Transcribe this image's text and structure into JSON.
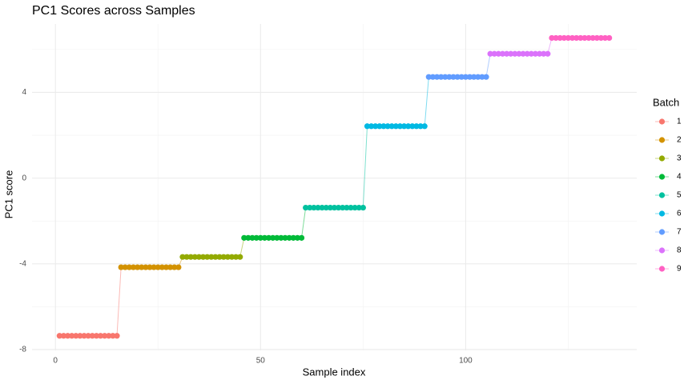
{
  "chart_data": {
    "type": "line",
    "title": "PC1 Scores across Samples",
    "x_label": "Sample index",
    "y_label": "PC1 score",
    "legend_title": "Batch",
    "xlim": [
      -5.7,
      141.7
    ],
    "ylim": [
      -8.04,
      7.19
    ],
    "xticks": [
      0,
      50,
      100
    ],
    "yticks": [
      -8,
      -4,
      0,
      4
    ],
    "x_minor_ticks": [
      25,
      75,
      125
    ],
    "y_minor_ticks": [
      -6,
      -2,
      2,
      6
    ],
    "grid": true,
    "legend_position": "right",
    "series": [
      {
        "name": "1",
        "color": "#F8766D",
        "x": [
          1,
          2,
          3,
          4,
          5,
          6,
          7,
          8,
          9,
          10,
          11,
          12,
          13,
          14,
          15
        ],
        "values": [
          -7.36,
          -7.36,
          -7.36,
          -7.36,
          -7.36,
          -7.36,
          -7.36,
          -7.36,
          -7.36,
          -7.36,
          -7.36,
          -7.36,
          -7.36,
          -7.36,
          -7.36
        ]
      },
      {
        "name": "2",
        "color": "#D39200",
        "x": [
          16,
          17,
          18,
          19,
          20,
          21,
          22,
          23,
          24,
          25,
          26,
          27,
          28,
          29,
          30
        ],
        "values": [
          -4.16,
          -4.16,
          -4.16,
          -4.16,
          -4.16,
          -4.16,
          -4.16,
          -4.16,
          -4.16,
          -4.16,
          -4.16,
          -4.16,
          -4.16,
          -4.16,
          -4.16
        ]
      },
      {
        "name": "3",
        "color": "#93AA00",
        "x": [
          31,
          32,
          33,
          34,
          35,
          36,
          37,
          38,
          39,
          40,
          41,
          42,
          43,
          44,
          45
        ],
        "values": [
          -3.68,
          -3.68,
          -3.68,
          -3.68,
          -3.68,
          -3.68,
          -3.68,
          -3.68,
          -3.68,
          -3.68,
          -3.68,
          -3.68,
          -3.68,
          -3.68,
          -3.68
        ]
      },
      {
        "name": "4",
        "color": "#00BA38",
        "x": [
          46,
          47,
          48,
          49,
          50,
          51,
          52,
          53,
          54,
          55,
          56,
          57,
          58,
          59,
          60
        ],
        "values": [
          -2.79,
          -2.79,
          -2.79,
          -2.79,
          -2.79,
          -2.79,
          -2.79,
          -2.79,
          -2.79,
          -2.79,
          -2.79,
          -2.79,
          -2.79,
          -2.79,
          -2.79
        ]
      },
      {
        "name": "5",
        "color": "#00C19F",
        "x": [
          61,
          62,
          63,
          64,
          65,
          66,
          67,
          68,
          69,
          70,
          71,
          72,
          73,
          74,
          75
        ],
        "values": [
          -1.38,
          -1.38,
          -1.38,
          -1.38,
          -1.38,
          -1.38,
          -1.38,
          -1.38,
          -1.38,
          -1.38,
          -1.38,
          -1.38,
          -1.38,
          -1.38,
          -1.38
        ]
      },
      {
        "name": "6",
        "color": "#00B9E3",
        "x": [
          76,
          77,
          78,
          79,
          80,
          81,
          82,
          83,
          84,
          85,
          86,
          87,
          88,
          89,
          90
        ],
        "values": [
          2.42,
          2.42,
          2.42,
          2.42,
          2.42,
          2.42,
          2.42,
          2.42,
          2.42,
          2.42,
          2.42,
          2.42,
          2.42,
          2.42,
          2.42
        ]
      },
      {
        "name": "7",
        "color": "#619CFF",
        "x": [
          91,
          92,
          93,
          94,
          95,
          96,
          97,
          98,
          99,
          100,
          101,
          102,
          103,
          104,
          105
        ],
        "values": [
          4.72,
          4.72,
          4.72,
          4.72,
          4.72,
          4.72,
          4.72,
          4.72,
          4.72,
          4.72,
          4.72,
          4.72,
          4.72,
          4.72,
          4.72
        ]
      },
      {
        "name": "8",
        "color": "#DB72FB",
        "x": [
          106,
          107,
          108,
          109,
          110,
          111,
          112,
          113,
          114,
          115,
          116,
          117,
          118,
          119,
          120
        ],
        "values": [
          5.8,
          5.8,
          5.8,
          5.8,
          5.8,
          5.8,
          5.8,
          5.8,
          5.8,
          5.8,
          5.8,
          5.8,
          5.8,
          5.8,
          5.8
        ]
      },
      {
        "name": "9",
        "color": "#FF61C3",
        "x": [
          121,
          122,
          123,
          124,
          125,
          126,
          127,
          128,
          129,
          130,
          131,
          132,
          133,
          134,
          135
        ],
        "values": [
          6.54,
          6.54,
          6.54,
          6.54,
          6.54,
          6.54,
          6.54,
          6.54,
          6.54,
          6.54,
          6.54,
          6.54,
          6.54,
          6.54,
          6.54
        ]
      }
    ]
  }
}
